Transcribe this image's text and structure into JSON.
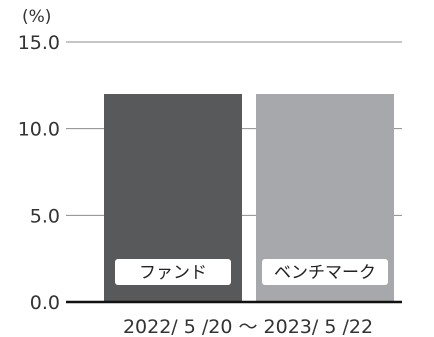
{
  "chart_data": {
    "type": "bar",
    "ylabel": "(%)",
    "ylim": [
      0,
      15
    ],
    "yticks": [
      {
        "value": 0,
        "label": "0.0"
      },
      {
        "value": 5,
        "label": "5.0"
      },
      {
        "value": 10,
        "label": "10.0"
      },
      {
        "value": 15,
        "label": "15.0"
      }
    ],
    "grid": true,
    "period_label": "2022/ 5 /20 ～ 2023/ 5 /22",
    "categories": [
      "ファンド",
      "ベンチマーク"
    ],
    "values": [
      12.0,
      12.0
    ],
    "colors": [
      "#58595b",
      "#a7a8ab"
    ],
    "legend": "none"
  }
}
